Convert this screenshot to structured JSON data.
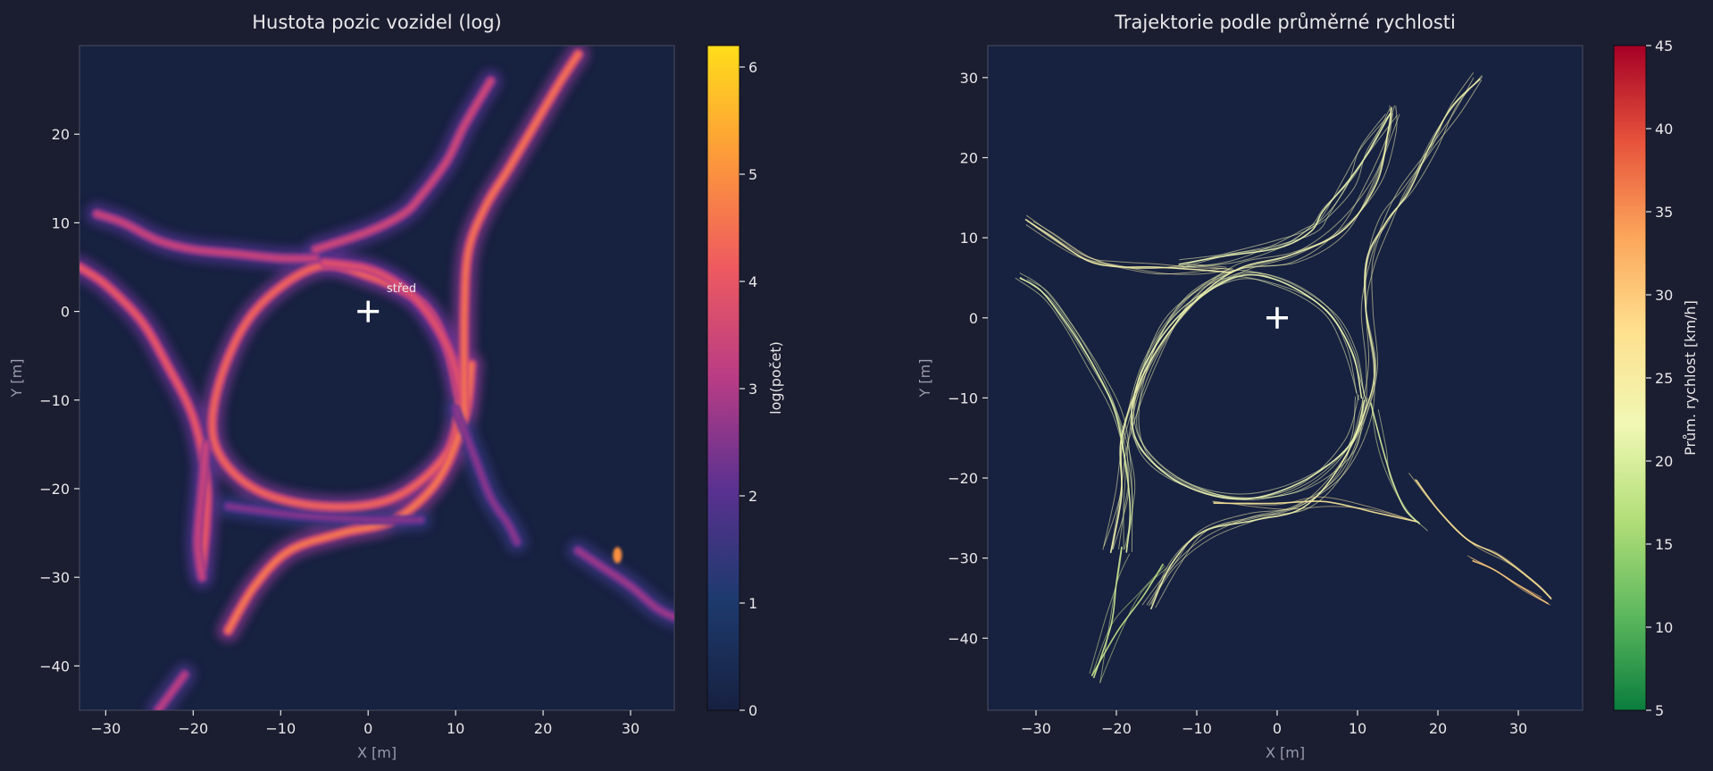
{
  "theme": {
    "figure_bg": "#1b1d30",
    "axes_bg": "#172140",
    "spine": "#4a4e60",
    "text": "#e8e8ea",
    "axis_label": "#9a9cab"
  },
  "chart_data": [
    {
      "type": "heatmap",
      "title": "Hustota pozic vozidel (log)",
      "xlabel": "X [m]",
      "ylabel": "Y [m]",
      "xlim": [
        -33,
        35
      ],
      "ylim": [
        -45,
        30
      ],
      "xticks": [
        -30,
        -20,
        -10,
        0,
        10,
        20,
        30
      ],
      "yticks": [
        -40,
        -30,
        -20,
        -10,
        0,
        10,
        20
      ],
      "grid": false,
      "colorbar": {
        "label": "log(počet)",
        "range": [
          0,
          6.2
        ],
        "ticks": [
          0,
          1,
          2,
          3,
          4,
          5,
          6
        ],
        "colormap": [
          "#172140",
          "#1d3a6e",
          "#5a3190",
          "#b93c85",
          "#ee5a5f",
          "#fd9a3a",
          "#ffde1a"
        ]
      },
      "center": {
        "x": 0,
        "y": 0,
        "label": "střed"
      },
      "tracks": [
        {
          "name": "ring",
          "intensity": 4.3,
          "points": [
            [
              10.5,
              -10
            ],
            [
              9,
              -4
            ],
            [
              6,
              1
            ],
            [
              0,
              4
            ],
            [
              -6,
              5
            ],
            [
              -13,
              0
            ],
            [
              -17,
              -8
            ],
            [
              -17.5,
              -15
            ],
            [
              -13,
              -20
            ],
            [
              -5,
              -22
            ],
            [
              3,
              -21
            ],
            [
              9,
              -16
            ],
            [
              10.5,
              -10
            ]
          ]
        },
        {
          "name": "ring-inner",
          "intensity": 3.8,
          "points": [
            [
              -5,
              5.5
            ],
            [
              0,
              4.8
            ],
            [
              4,
              2.7
            ],
            [
              7,
              -0.5
            ],
            [
              9.5,
              -5
            ],
            [
              10.8,
              -10
            ]
          ]
        },
        {
          "name": "bottom-entry",
          "intensity": 4.6,
          "points": [
            [
              -16,
              -36
            ],
            [
              -13,
              -31
            ],
            [
              -9,
              -27
            ],
            [
              -3,
              -25
            ],
            [
              3,
              -23.5
            ],
            [
              8,
              -19
            ],
            [
              11,
              -12
            ],
            [
              11.8,
              -6
            ]
          ]
        },
        {
          "name": "east-vertical",
          "intensity": 4.5,
          "points": [
            [
              11,
              -12
            ],
            [
              11,
              0
            ],
            [
              11.5,
              7
            ],
            [
              13.5,
              12
            ],
            [
              16,
              16
            ],
            [
              19,
              21
            ],
            [
              22,
              26
            ],
            [
              24,
              29
            ]
          ]
        },
        {
          "name": "northeast-branch",
          "intensity": 3.5,
          "points": [
            [
              -6,
              7
            ],
            [
              0,
              9
            ],
            [
              4,
              11
            ],
            [
              6,
              13
            ],
            [
              9,
              17
            ],
            [
              11,
              21
            ],
            [
              14,
              26
            ]
          ]
        },
        {
          "name": "west-loop",
          "intensity": 3.4,
          "points": [
            [
              -31,
              11
            ],
            [
              -28,
              10
            ],
            [
              -24,
              8
            ],
            [
              -20,
              7
            ],
            [
              -15,
              6.5
            ],
            [
              -10,
              6
            ],
            [
              -6,
              6
            ]
          ]
        },
        {
          "name": "west-ramp",
          "intensity": 4.0,
          "points": [
            [
              -33,
              5
            ],
            [
              -30,
              3
            ],
            [
              -26,
              -1
            ],
            [
              -23,
              -6
            ],
            [
              -20,
              -12
            ],
            [
              -18.5,
              -19
            ],
            [
              -18.5,
              -24
            ],
            [
              -19,
              -29
            ]
          ]
        },
        {
          "name": "southwest-ramp",
          "intensity": 3.4,
          "points": [
            [
              -18.5,
              -15
            ],
            [
              -19,
              -20
            ],
            [
              -19.5,
              -26
            ],
            [
              -19,
              -30
            ]
          ]
        },
        {
          "name": "south-spur",
          "intensity": 2.6,
          "points": [
            [
              10,
              -11
            ],
            [
              12,
              -16
            ],
            [
              14,
              -21
            ],
            [
              16,
              -24
            ],
            [
              17,
              -26
            ]
          ]
        },
        {
          "name": "ring-south-lane",
          "intensity": 2.5,
          "points": [
            [
              -16,
              -22
            ],
            [
              -8,
              -23
            ],
            [
              0,
              -23.5
            ],
            [
              6,
              -23.5
            ]
          ]
        },
        {
          "name": "southeast-lane",
          "intensity": 2.8,
          "points": [
            [
              24,
              -27
            ],
            [
              27,
              -29
            ],
            [
              30,
              -31
            ],
            [
              33,
              -33.5
            ],
            [
              35,
              -34.5
            ]
          ]
        },
        {
          "name": "southwest-stub",
          "intensity": 3.2,
          "points": [
            [
              -24,
              -45
            ],
            [
              -22.5,
              -43
            ],
            [
              -21,
              -41
            ]
          ]
        }
      ],
      "hotspots": [
        {
          "x": 28.5,
          "y": -27.5,
          "intensity": 5.0
        }
      ]
    },
    {
      "type": "line",
      "title": "Trajektorie podle průměrné rychlosti",
      "xlabel": "X [m]",
      "ylabel": "Y [m]",
      "xlim": [
        -36,
        38
      ],
      "ylim": [
        -49,
        34
      ],
      "xticks": [
        -30,
        -20,
        -10,
        0,
        10,
        20,
        30
      ],
      "yticks": [
        -40,
        -30,
        -20,
        -10,
        0,
        10,
        20,
        30
      ],
      "grid": false,
      "colorbar": {
        "label": "Prům. rychlost [km/h]",
        "range": [
          5,
          45
        ],
        "ticks": [
          5,
          10,
          15,
          20,
          25,
          30,
          35,
          40,
          45
        ],
        "colormap": [
          "#0a7d3d",
          "#5db85e",
          "#b2de78",
          "#f0f8b4",
          "#fee08e",
          "#fca55a",
          "#e6523b",
          "#a50026"
        ]
      },
      "center": {
        "x": 0,
        "y": 0
      },
      "series": [
        {
          "speed": 22,
          "points": [
            [
              10.5,
              -10
            ],
            [
              9,
              -4
            ],
            [
              6,
              1
            ],
            [
              0,
              4.5
            ],
            [
              -6,
              5
            ],
            [
              -13,
              0
            ],
            [
              -17,
              -8
            ],
            [
              -17.5,
              -15
            ],
            [
              -13,
              -20
            ],
            [
              -5,
              -22.5
            ],
            [
              3,
              -21
            ],
            [
              9,
              -16
            ],
            [
              10.5,
              -10
            ]
          ]
        },
        {
          "speed": 23,
          "points": [
            [
              -21,
              -29
            ],
            [
              -19.5,
              -22
            ],
            [
              -19,
              -15
            ],
            [
              -16,
              -6
            ],
            [
              -11,
              2
            ],
            [
              -5,
              6
            ],
            [
              2,
              7.5
            ],
            [
              8,
              11
            ],
            [
              12,
              17
            ],
            [
              14,
              23
            ],
            [
              14.5,
              26
            ]
          ]
        },
        {
          "speed": 23,
          "points": [
            [
              -16,
              -36
            ],
            [
              -13,
              -31
            ],
            [
              -9,
              -27
            ],
            [
              -3,
              -25
            ],
            [
              3,
              -23.5
            ],
            [
              8,
              -19
            ],
            [
              11,
              -12
            ],
            [
              11.8,
              -6
            ],
            [
              11,
              1
            ],
            [
              11.5,
              7
            ],
            [
              13.5,
              12
            ],
            [
              16,
              16
            ],
            [
              19,
              21
            ],
            [
              22,
              26
            ],
            [
              25,
              30
            ]
          ]
        },
        {
          "speed": 21,
          "points": [
            [
              -32,
              5
            ],
            [
              -29,
              3
            ],
            [
              -26,
              -1
            ],
            [
              -23,
              -6
            ],
            [
              -20,
              -12
            ],
            [
              -18.5,
              -19
            ],
            [
              -18.5,
              -24
            ],
            [
              -19,
              -29
            ]
          ]
        },
        {
          "speed": 24,
          "points": [
            [
              -31,
              12
            ],
            [
              -28,
              10
            ],
            [
              -24,
              7.5
            ],
            [
              -20,
              6.5
            ],
            [
              -15,
              6
            ],
            [
              -10,
              6
            ],
            [
              -6,
              6
            ]
          ]
        },
        {
          "speed": 18,
          "points": [
            [
              -22.7,
              -45
            ],
            [
              -20,
              -39
            ],
            [
              -17,
              -34.5
            ],
            [
              -14,
              -31
            ]
          ]
        },
        {
          "speed": 19,
          "points": [
            [
              -22.7,
              -45
            ],
            [
              -21,
              -38
            ],
            [
              -20,
              -33
            ],
            [
              -19,
              -29
            ]
          ]
        },
        {
          "speed": 27,
          "points": [
            [
              17,
              -20
            ],
            [
              20,
              -24
            ],
            [
              24,
              -28
            ],
            [
              28,
              -30
            ],
            [
              32,
              -33
            ],
            [
              34,
              -35
            ]
          ]
        },
        {
          "speed": 30,
          "points": [
            [
              24,
              -30
            ],
            [
              27,
              -31.5
            ],
            [
              30,
              -33.5
            ],
            [
              33.5,
              -35.5
            ]
          ]
        },
        {
          "speed": 26,
          "points": [
            [
              -8,
              -23
            ],
            [
              0,
              -23.5
            ],
            [
              6,
              -23
            ],
            [
              12,
              -24
            ],
            [
              17.5,
              -25.5
            ]
          ]
        },
        {
          "speed": 22,
          "points": [
            [
              -12,
              6.5
            ],
            [
              -6,
              7.5
            ],
            [
              0,
              9
            ],
            [
              4,
              11
            ],
            [
              6,
              13
            ],
            [
              9,
              17
            ],
            [
              11,
              21
            ],
            [
              14,
              25.5
            ]
          ]
        },
        {
          "speed": 20,
          "points": [
            [
              12,
              -11
            ],
            [
              13,
              -16
            ],
            [
              14,
              -20
            ],
            [
              16,
              -24
            ],
            [
              18,
              -26
            ]
          ]
        }
      ]
    }
  ]
}
